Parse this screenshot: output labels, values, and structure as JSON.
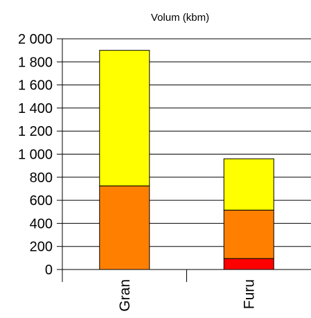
{
  "chart_data": {
    "type": "bar",
    "stacked": true,
    "title": "Volum (kbm)",
    "xlabel": "",
    "ylabel": "",
    "categories": [
      "Gran",
      "Furu"
    ],
    "series": [
      {
        "color": "#ff0000",
        "values": [
          0,
          95
        ]
      },
      {
        "color": "#ff8000",
        "values": [
          725,
          420
        ]
      },
      {
        "color": "#ffff00",
        "values": [
          1175,
          445
        ]
      }
    ],
    "ylim": [
      0,
      2000
    ],
    "yticks": [
      0,
      200,
      400,
      600,
      800,
      1000,
      1200,
      1400,
      1600,
      1800,
      2000
    ],
    "ytick_labels": [
      "0",
      "200",
      "400",
      "600",
      "800",
      "1 000",
      "1 200",
      "1 400",
      "1 600",
      "1 800",
      "2 000"
    ],
    "grid": true,
    "legend": "none"
  }
}
